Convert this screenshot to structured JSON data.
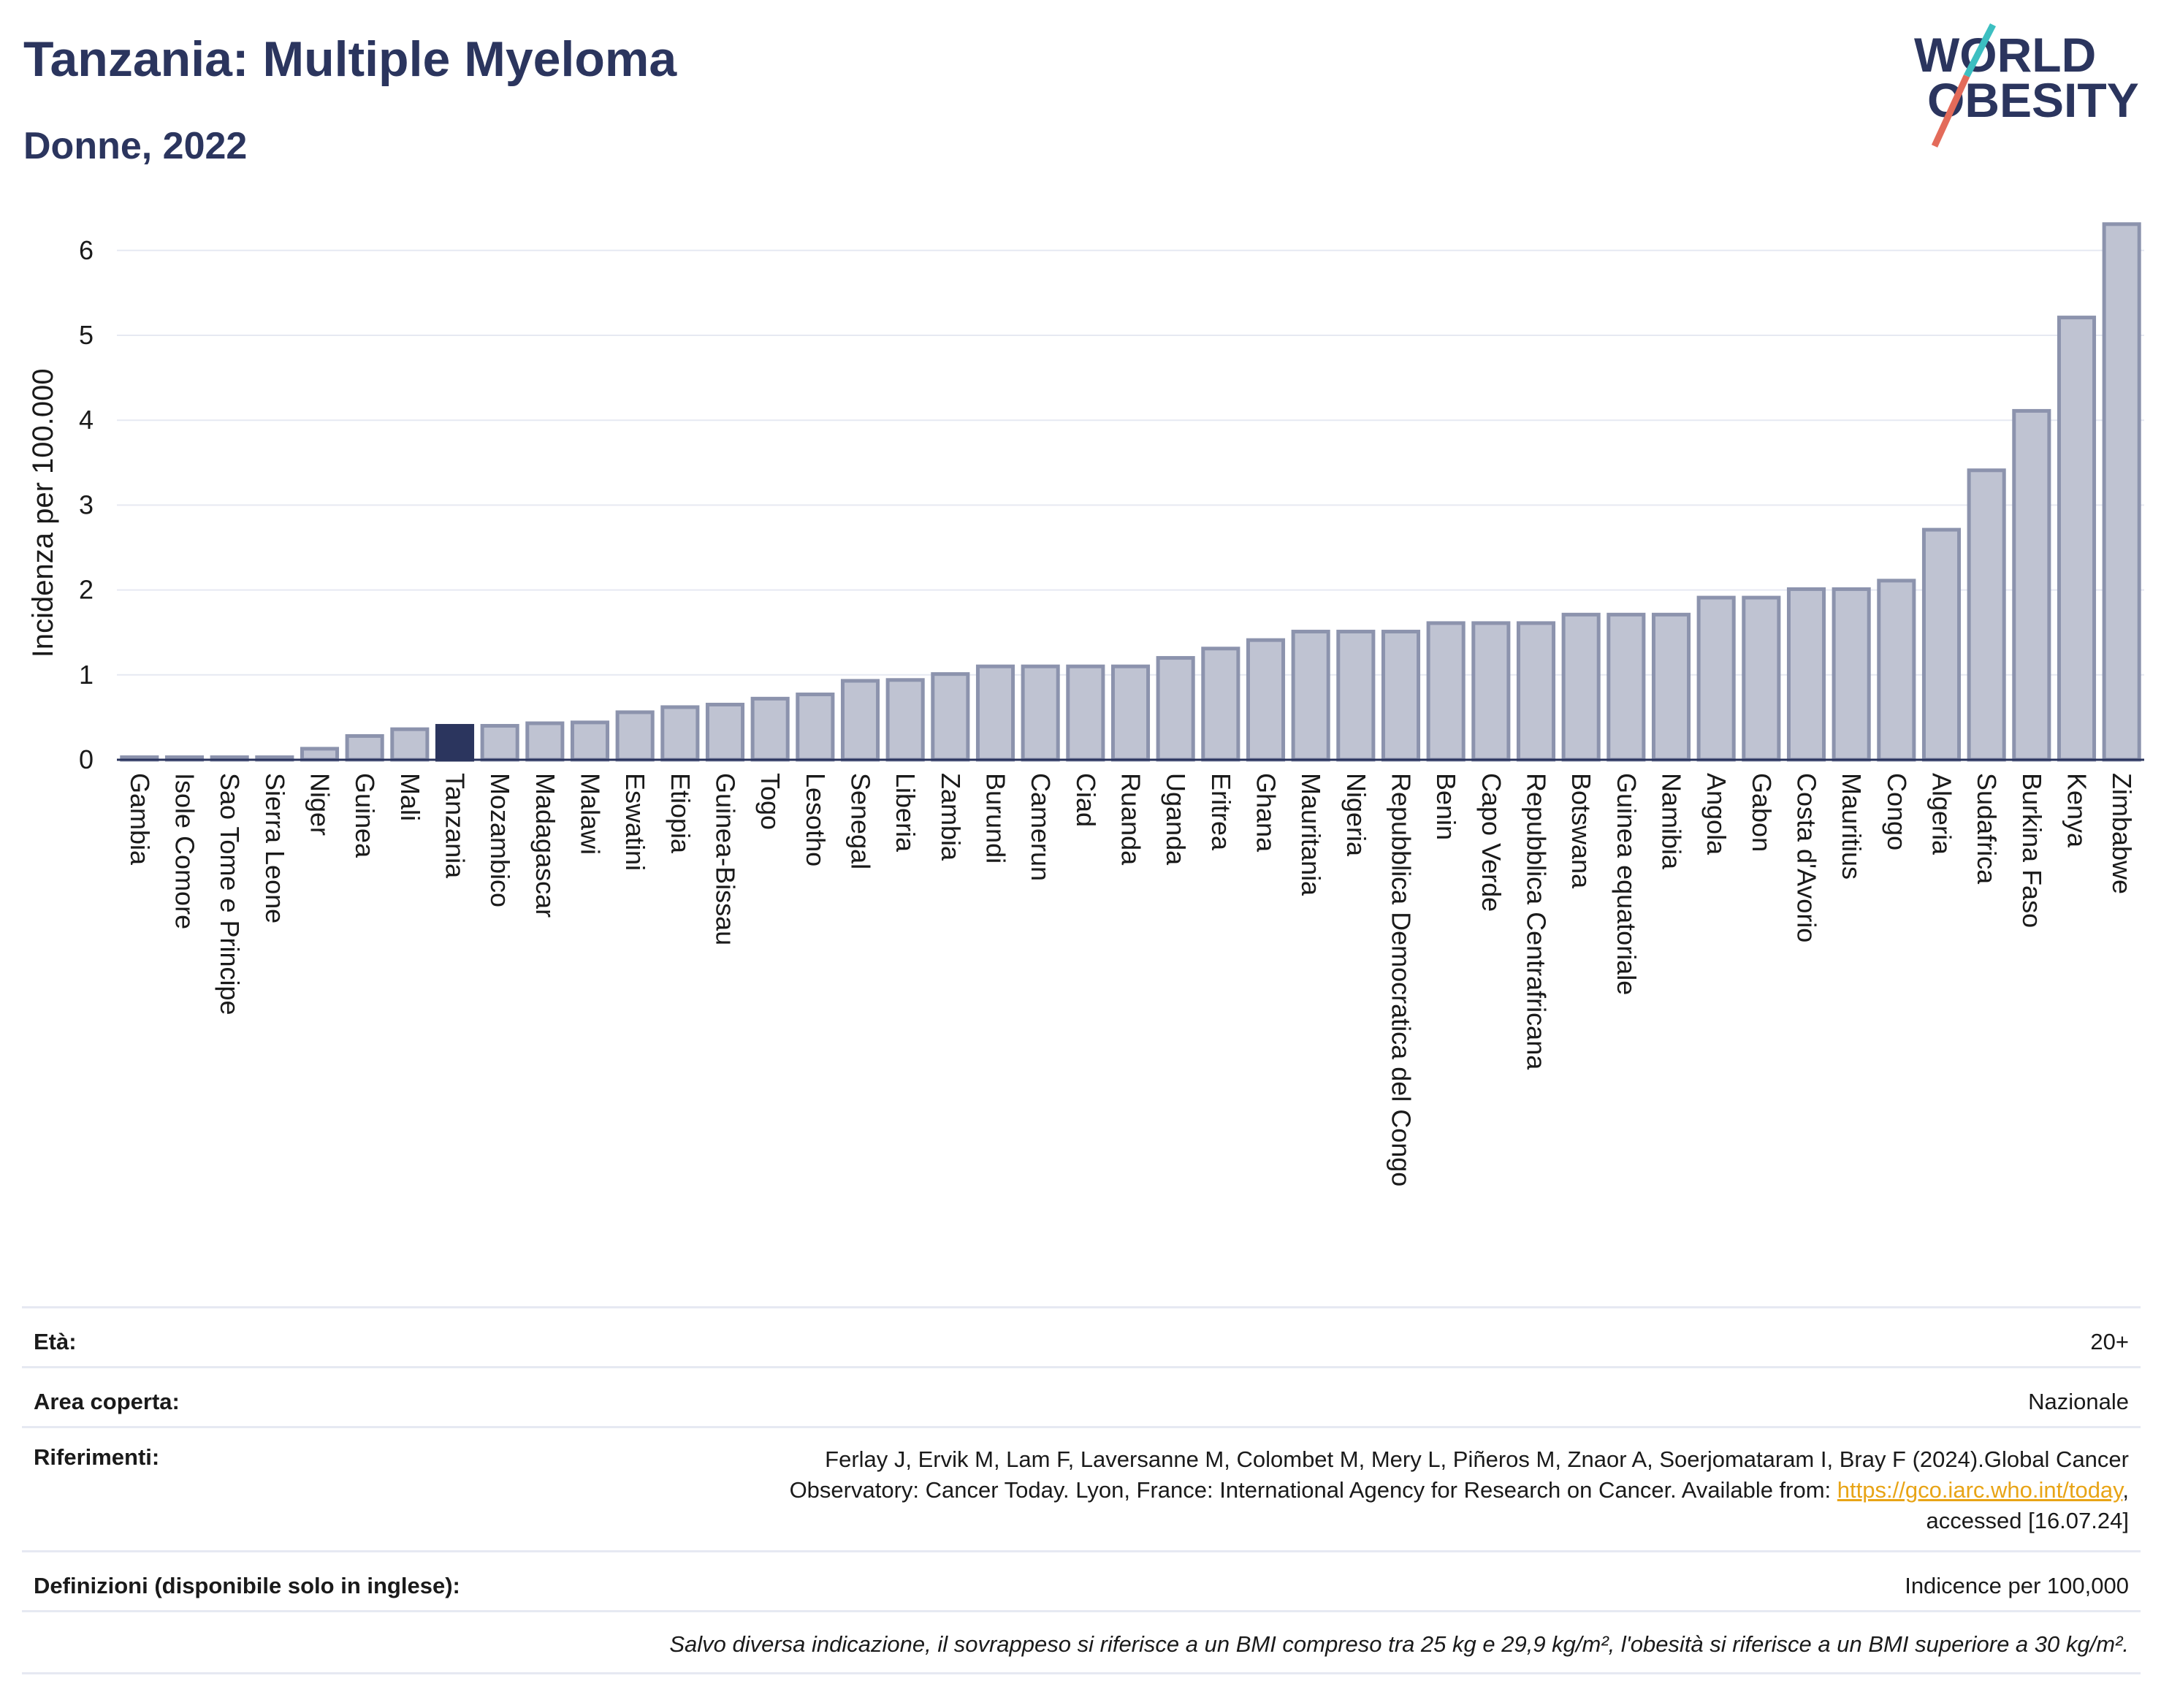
{
  "header": {
    "title": "Tanzania: Multiple Myeloma",
    "subtitle": "Donne, 2022"
  },
  "logo": {
    "line1": "WORLD",
    "line2": "OBESITY",
    "colors": {
      "text": "#2b355e",
      "slash_teal": "#3cbfc1",
      "slash_red": "#e36b5a"
    }
  },
  "colors": {
    "bar": "#bfc3d2",
    "bar_stroke": "#8c93ad",
    "highlight": "#2b355e",
    "grid": "#e6e9f2",
    "axis": "#2b355e"
  },
  "chart_data": {
    "type": "bar",
    "ylabel": "Incidenza per 100.000",
    "ylim": [
      0,
      6.5
    ],
    "yticks": [
      0,
      1,
      2,
      3,
      4,
      5,
      6
    ],
    "highlight": "Tanzania",
    "categories": [
      "Gambia",
      "Isole Comore",
      "Sao Tome e Principe",
      "Sierra Leone",
      "Niger",
      "Guinea",
      "Mali",
      "Tanzania",
      "Mozambico",
      "Madagascar",
      "Malawi",
      "Eswatini",
      "Etiopia",
      "Guinea-Bissau",
      "Togo",
      "Lesotho",
      "Senegal",
      "Liberia",
      "Zambia",
      "Burundi",
      "Camerun",
      "Ciad",
      "Ruanda",
      "Uganda",
      "Eritrea",
      "Ghana",
      "Mauritania",
      "Nigeria",
      "Repubblica Democratica del Congo",
      "Benin",
      "Capo Verde",
      "Repubblica Centrafricana",
      "Botswana",
      "Guinea equatoriale",
      "Namibia",
      "Angola",
      "Gabon",
      "Costa d'Avorio",
      "Mauritius",
      "Congo",
      "Algeria",
      "Sudafrica",
      "Burkina Faso",
      "Kenya",
      "Zimbabwe"
    ],
    "values": [
      0.03,
      0.03,
      0.03,
      0.03,
      0.13,
      0.28,
      0.36,
      0.4,
      0.4,
      0.43,
      0.44,
      0.56,
      0.62,
      0.65,
      0.72,
      0.77,
      0.93,
      0.94,
      1.01,
      1.1,
      1.1,
      1.1,
      1.1,
      1.2,
      1.31,
      1.41,
      1.51,
      1.51,
      1.51,
      1.61,
      1.61,
      1.61,
      1.71,
      1.71,
      1.71,
      1.91,
      1.91,
      2.01,
      2.01,
      2.11,
      2.71,
      3.41,
      4.11,
      5.21,
      6.31
    ]
  },
  "meta": {
    "age": {
      "label": "Età:",
      "value": "20+"
    },
    "area": {
      "label": "Area coperta:",
      "value": "Nazionale"
    },
    "refs": {
      "label": "Riferimenti:",
      "line1": "Ferlay J, Ervik M, Lam F, Laversanne M, Colombet M, Mery L, Piñeros M, Znaor A, Soerjomataram I, Bray F (2024).Global Cancer",
      "line2_pre": "Observatory: Cancer Today. Lyon, France: International Agency for Research on Cancer. Available from: ",
      "link": "https://gco.iarc.who.int/today",
      "line2_post": ",",
      "line3": "accessed [16.07.24]"
    },
    "defs": {
      "label": "Definizioni (disponibile solo in inglese):",
      "value": "Indicence per 100,000"
    },
    "footnote": "Salvo diversa indicazione, il sovrappeso si riferisce a un BMI compreso tra 25 kg e 29,9 kg/m², l'obesità si riferisce a un BMI superiore a 30 kg/m²."
  }
}
